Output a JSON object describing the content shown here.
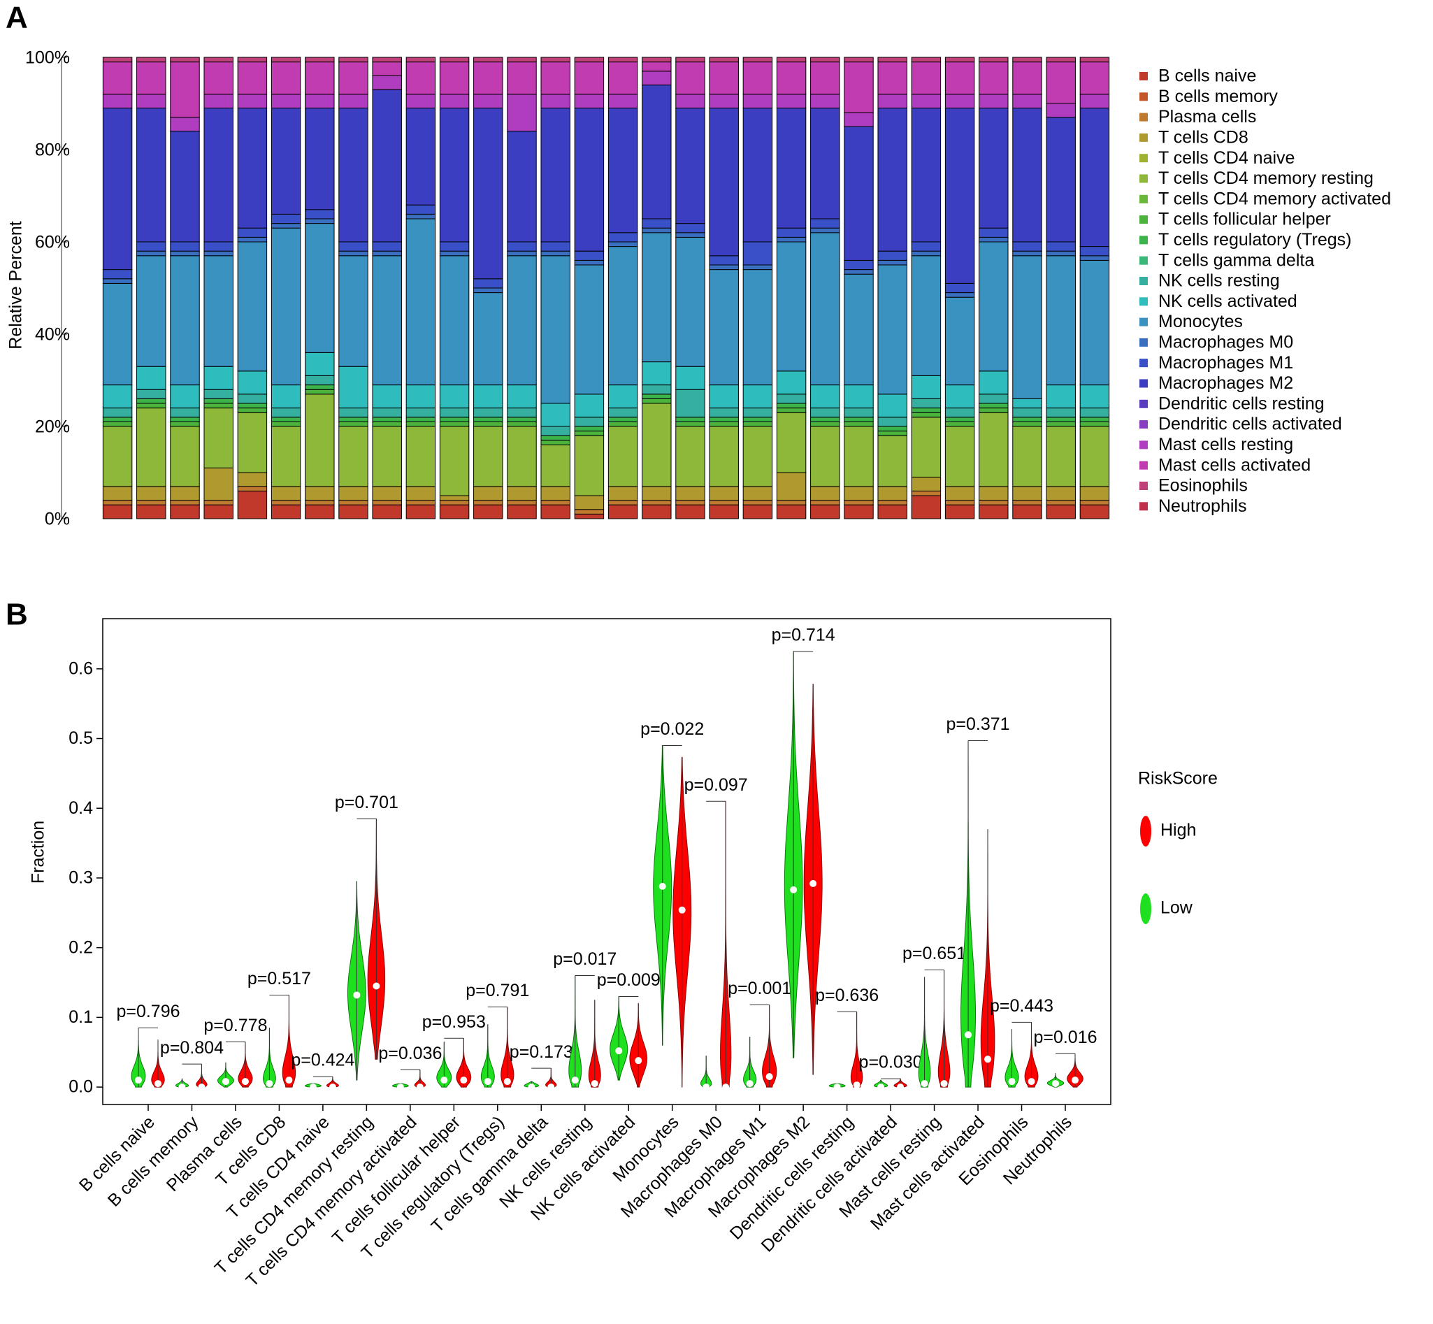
{
  "chart_data": [
    {
      "panel_label": "A",
      "type": "stacked_bar",
      "y_label": "Relative Percent",
      "ylim": [
        0,
        100
      ],
      "yticks": [
        {
          "value": 0,
          "label": "0%"
        },
        {
          "value": 20,
          "label": "20%"
        },
        {
          "value": 40,
          "label": "40%"
        },
        {
          "value": 60,
          "label": "60%"
        },
        {
          "value": 80,
          "label": "80%"
        },
        {
          "value": 100,
          "label": "100%"
        }
      ],
      "series": [
        {
          "name": "B cells naive",
          "color": "#c0392b",
          "values": [
            3,
            3,
            3,
            3,
            6,
            3,
            3,
            3,
            3,
            3,
            3,
            3,
            3,
            3,
            1,
            3,
            3,
            3,
            3,
            3,
            3,
            3,
            3,
            3,
            5,
            3,
            3,
            3,
            3,
            3
          ]
        },
        {
          "name": "B cells memory",
          "color": "#c4582a",
          "values": [
            0,
            0,
            0,
            0,
            0,
            0,
            0,
            0,
            0,
            0,
            0,
            0,
            0,
            0,
            0,
            0,
            0,
            0,
            0,
            0,
            0,
            0,
            0,
            0,
            0,
            0,
            0,
            0,
            0,
            0
          ]
        },
        {
          "name": "Plasma cells",
          "color": "#c07a30",
          "values": [
            1,
            1,
            1,
            1,
            1,
            1,
            1,
            1,
            1,
            1,
            1,
            1,
            1,
            1,
            1,
            1,
            1,
            1,
            1,
            1,
            1,
            1,
            1,
            1,
            1,
            1,
            1,
            1,
            1,
            1
          ]
        },
        {
          "name": "T cells CD8",
          "color": "#b09a30",
          "values": [
            3,
            3,
            3,
            7,
            3,
            3,
            3,
            3,
            3,
            3,
            1,
            3,
            3,
            3,
            3,
            3,
            3,
            3,
            3,
            3,
            6,
            3,
            3,
            3,
            3,
            3,
            3,
            3,
            3,
            3
          ]
        },
        {
          "name": "T cells CD4 naive",
          "color": "#a0b030",
          "values": [
            0,
            0,
            0,
            0,
            0,
            0,
            0,
            0,
            0,
            0,
            0,
            0,
            0,
            0,
            0,
            0,
            0,
            0,
            0,
            0,
            0,
            0,
            0,
            0,
            0,
            0,
            0,
            0,
            0,
            0
          ]
        },
        {
          "name": "T cells CD4 memory resting",
          "color": "#8db83a",
          "values": [
            13,
            17,
            13,
            13,
            13,
            13,
            20,
            13,
            13,
            13,
            15,
            13,
            13,
            9,
            13,
            13,
            18,
            13,
            13,
            13,
            13,
            13,
            13,
            11,
            13,
            13,
            16,
            13,
            13,
            13
          ]
        },
        {
          "name": "T cells CD4 memory activated",
          "color": "#6ab83a",
          "values": [
            0,
            0,
            0,
            0,
            0,
            0,
            0,
            0,
            0,
            0,
            0,
            0,
            0,
            0,
            0,
            0,
            0,
            0,
            0,
            0,
            0,
            0,
            0,
            0,
            0,
            0,
            0,
            0,
            0,
            0
          ]
        },
        {
          "name": "T cells follicular helper",
          "color": "#4cb43c",
          "values": [
            1,
            1,
            1,
            1,
            1,
            1,
            1,
            1,
            1,
            1,
            1,
            1,
            1,
            1,
            1,
            1,
            1,
            1,
            1,
            1,
            1,
            1,
            1,
            1,
            1,
            1,
            1,
            1,
            1,
            1
          ]
        },
        {
          "name": "T cells regulatory (Tregs)",
          "color": "#3cb44a",
          "values": [
            1,
            1,
            1,
            1,
            1,
            1,
            1,
            1,
            1,
            1,
            1,
            1,
            1,
            1,
            1,
            1,
            1,
            1,
            1,
            1,
            1,
            1,
            1,
            1,
            1,
            1,
            1,
            1,
            1,
            1
          ]
        },
        {
          "name": "T cells gamma delta",
          "color": "#3ab87a",
          "values": [
            0,
            0,
            0,
            0,
            0,
            0,
            0,
            0,
            0,
            0,
            0,
            0,
            0,
            0,
            0,
            0,
            0,
            0,
            0,
            0,
            0,
            0,
            0,
            0,
            0,
            0,
            0,
            0,
            0,
            0
          ]
        },
        {
          "name": "NK cells resting",
          "color": "#35b0a0",
          "values": [
            2,
            2,
            2,
            2,
            2,
            2,
            2,
            2,
            2,
            2,
            2,
            2,
            2,
            2,
            2,
            2,
            2,
            6,
            2,
            2,
            2,
            2,
            2,
            2,
            2,
            2,
            2,
            2,
            2,
            2
          ]
        },
        {
          "name": "NK cells activated",
          "color": "#2fbcbc",
          "values": [
            5,
            5,
            5,
            5,
            5,
            5,
            5,
            9,
            5,
            5,
            5,
            5,
            5,
            5,
            5,
            5,
            5,
            5,
            5,
            5,
            5,
            5,
            5,
            5,
            5,
            5,
            5,
            2,
            5,
            5
          ]
        },
        {
          "name": "Monocytes",
          "color": "#3a92c0",
          "values": [
            22,
            24,
            28,
            24,
            28,
            34,
            28,
            24,
            28,
            36,
            28,
            20,
            28,
            32,
            28,
            30,
            28,
            28,
            25,
            25,
            28,
            33,
            24,
            28,
            26,
            19,
            28,
            31,
            28,
            27
          ]
        },
        {
          "name": "Macrophages M0",
          "color": "#3a6ec0",
          "values": [
            1,
            1,
            1,
            1,
            1,
            1,
            1,
            1,
            1,
            1,
            1,
            1,
            1,
            1,
            1,
            1,
            1,
            1,
            1,
            1,
            1,
            1,
            1,
            1,
            1,
            1,
            1,
            1,
            1,
            1
          ]
        },
        {
          "name": "Macrophages M1",
          "color": "#3a50c8",
          "values": [
            2,
            2,
            2,
            2,
            2,
            2,
            2,
            2,
            2,
            2,
            2,
            2,
            2,
            2,
            2,
            2,
            2,
            2,
            2,
            5,
            2,
            2,
            2,
            2,
            2,
            2,
            2,
            2,
            2,
            2
          ]
        },
        {
          "name": "Macrophages M2",
          "color": "#3b3ec0",
          "values": [
            35,
            29,
            24,
            29,
            26,
            23,
            22,
            29,
            33,
            21,
            29,
            37,
            24,
            29,
            31,
            27,
            29,
            25,
            32,
            29,
            26,
            24,
            29,
            31,
            29,
            38,
            26,
            29,
            27,
            30
          ]
        },
        {
          "name": "Dendritic cells resting",
          "color": "#5a3cc0",
          "values": [
            0,
            0,
            0,
            0,
            0,
            0,
            0,
            0,
            0,
            0,
            0,
            0,
            0,
            0,
            0,
            0,
            0,
            0,
            0,
            0,
            0,
            0,
            0,
            0,
            0,
            0,
            0,
            0,
            0,
            0
          ]
        },
        {
          "name": "Dendritic cells activated",
          "color": "#8a3cc0",
          "values": [
            0,
            0,
            0,
            0,
            0,
            0,
            0,
            0,
            0,
            0,
            0,
            0,
            0,
            0,
            0,
            0,
            0,
            0,
            0,
            0,
            0,
            0,
            0,
            0,
            0,
            0,
            0,
            0,
            0,
            0
          ]
        },
        {
          "name": "Mast cells resting",
          "color": "#b03cc0",
          "values": [
            3,
            3,
            3,
            3,
            3,
            3,
            3,
            3,
            3,
            3,
            3,
            3,
            8,
            3,
            3,
            3,
            3,
            3,
            3,
            3,
            3,
            3,
            3,
            3,
            3,
            3,
            3,
            3,
            3,
            3
          ]
        },
        {
          "name": "Mast cells activated",
          "color": "#c03cb0",
          "values": [
            7,
            7,
            12,
            7,
            7,
            7,
            7,
            7,
            3,
            7,
            7,
            7,
            7,
            7,
            7,
            7,
            2,
            7,
            7,
            7,
            7,
            7,
            11,
            7,
            7,
            7,
            7,
            7,
            9,
            7
          ]
        },
        {
          "name": "Eosinophils",
          "color": "#c0407a",
          "values": [
            1,
            1,
            1,
            1,
            1,
            1,
            1,
            1,
            1,
            1,
            1,
            1,
            1,
            1,
            1,
            1,
            1,
            1,
            1,
            1,
            1,
            1,
            1,
            1,
            1,
            1,
            1,
            1,
            1,
            1
          ]
        },
        {
          "name": "Neutrophils",
          "color": "#c0304a",
          "values": [
            0,
            0,
            0,
            0,
            0,
            0,
            0,
            0,
            0,
            0,
            0,
            0,
            0,
            0,
            0,
            0,
            0,
            0,
            0,
            0,
            0,
            0,
            0,
            0,
            0,
            0,
            0,
            0,
            0,
            0
          ]
        }
      ]
    },
    {
      "panel_label": "B",
      "type": "violin",
      "y_label": "Fraction",
      "legend_title": "RiskScore",
      "categories": [
        "B cells naive",
        "B cells memory",
        "Plasma cells",
        "T cells CD8",
        "T cells CD4 naive",
        "T cells CD4 memory resting",
        "T cells CD4 memory activated",
        "T cells follicular helper",
        "T cells regulatory (Tregs)",
        "T cells gamma delta",
        "NK cells resting",
        "NK cells activated",
        "Monocytes",
        "Macrophages M0",
        "Macrophages M1",
        "Macrophages M2",
        "Dendritic cells resting",
        "Dendritic cells activated",
        "Mast cells resting",
        "Mast cells activated",
        "Eosinophils",
        "Neutrophils"
      ],
      "p_labels": [
        "p=0.796",
        "p=0.804",
        "p=0.778",
        "p=0.517",
        "p=0.424",
        "p=0.701",
        "p=0.036",
        "p=0.953",
        "p=0.791",
        "p=0.173",
        "p=0.017",
        "p=0.009",
        "p=0.022",
        "p=0.097",
        "p=0.001",
        "p=0.714",
        "p=0.636",
        "p=0.030",
        "p=0.651",
        "p=0.371",
        "p=0.443",
        "p=0.016"
      ],
      "ylim": [
        -0.025,
        0.672
      ],
      "yticks": [
        {
          "value": 0,
          "label": "0.0"
        },
        0.1,
        0.2,
        0.3,
        0.4,
        0.5,
        0.6
      ],
      "series": [
        {
          "name": "High",
          "color": "#ff0000",
          "min": [
            0,
            0,
            0,
            0,
            0,
            0.04,
            0,
            0,
            0,
            0,
            0,
            0,
            0,
            0,
            0,
            0.018,
            0,
            0,
            0,
            0,
            0,
            0
          ],
          "median": [
            0.005,
            0,
            0.008,
            0.01,
            0,
            0.145,
            0,
            0.01,
            0.008,
            0,
            0.005,
            0.038,
            0.254,
            0,
            0.015,
            0.292,
            0.003,
            0,
            0.005,
            0.04,
            0.008,
            0.01
          ],
          "max": [
            0.068,
            0.033,
            0.065,
            0.132,
            0.015,
            0.385,
            0.025,
            0.07,
            0.115,
            0.027,
            0.125,
            0.12,
            0.473,
            0.41,
            0.118,
            0.578,
            0.108,
            0.012,
            0.168,
            0.37,
            0.093,
            0.048
          ]
        },
        {
          "name": "Low",
          "color": "#1ee01e",
          "min": [
            0,
            0,
            0,
            0,
            0,
            0.01,
            0,
            0,
            0,
            0,
            0,
            0.01,
            0.06,
            0,
            0,
            0.042,
            0,
            0,
            0,
            0,
            0,
            0
          ],
          "median": [
            0.01,
            0,
            0.008,
            0.005,
            0,
            0.132,
            0,
            0.01,
            0.008,
            0,
            0.01,
            0.052,
            0.288,
            0,
            0.005,
            0.283,
            0,
            0,
            0.005,
            0.075,
            0.008,
            0.005
          ],
          "max": [
            0.085,
            0.012,
            0.035,
            0.085,
            0.005,
            0.295,
            0.005,
            0.065,
            0.09,
            0.008,
            0.16,
            0.13,
            0.49,
            0.045,
            0.072,
            0.625,
            0.005,
            0.01,
            0.158,
            0.497,
            0.083,
            0.02
          ]
        }
      ]
    }
  ]
}
